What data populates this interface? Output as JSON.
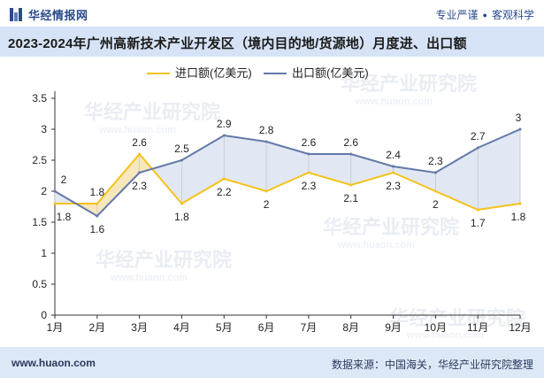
{
  "header": {
    "brand_name": "华经情报网",
    "slogan_left": "专业严谨",
    "slogan_right": "客观科学"
  },
  "title_text": "2023-2024年广州高新技术产业开发区（境内目的地/货源地）月度进、出口额",
  "footer": {
    "url": "www.huaon.com",
    "source": "数据来源：中国海关，华经产业研究院整理"
  },
  "watermark": {
    "text": "华经产业研究院",
    "url": "www.huaon.com"
  },
  "colors": {
    "import_line": "#f5c218",
    "export_line": "#6279a8",
    "fill_between": "#dfe6f2",
    "brand": "#2a4a8a"
  },
  "chart_data": {
    "type": "line",
    "categories": [
      "1月",
      "2月",
      "3月",
      "4月",
      "5月",
      "6月",
      "7月",
      "8月",
      "9月",
      "10月",
      "11月",
      "12月"
    ],
    "series": [
      {
        "name": "进口额(亿美元)",
        "values": [
          1.8,
          1.8,
          2.6,
          1.8,
          2.2,
          2.0,
          2.3,
          2.1,
          2.3,
          2.0,
          1.7,
          1.8
        ]
      },
      {
        "name": "出口额(亿美元)",
        "values": [
          2.0,
          1.6,
          2.3,
          2.5,
          2.9,
          2.8,
          2.6,
          2.6,
          2.4,
          2.3,
          2.7,
          3.0
        ]
      }
    ],
    "ylim": [
      0,
      3.5
    ],
    "yticks": [
      "0",
      "0.5",
      "1",
      "1.5",
      "2",
      "2.5",
      "3",
      "3.5"
    ],
    "legend_position": "top-left",
    "grid": false,
    "data_labels": true
  }
}
